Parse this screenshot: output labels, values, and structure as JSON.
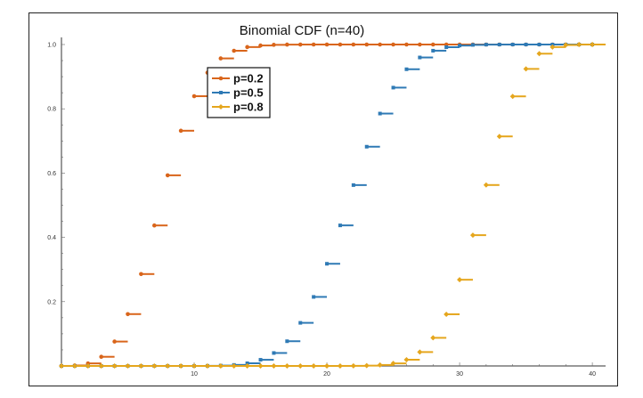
{
  "chart_data": {
    "type": "line",
    "step": true,
    "title": "Binomial CDF (n=40)",
    "xlabel": "",
    "ylabel": "",
    "xlim": [
      0,
      41
    ],
    "ylim": [
      0,
      1.0
    ],
    "x_ticks": [
      10,
      20,
      30,
      40
    ],
    "y_ticks": [
      0.2,
      0.4,
      0.6,
      0.8,
      1.0
    ],
    "x_tick_labels": [
      "10",
      "20",
      "30",
      "40"
    ],
    "y_tick_labels": [
      "0.2",
      "0.4",
      "0.6",
      "0.8",
      "1.0"
    ],
    "grid": false,
    "legend_position": "inside-upper-left",
    "x": [
      0,
      1,
      2,
      3,
      4,
      5,
      6,
      7,
      8,
      9,
      10,
      11,
      12,
      13,
      14,
      15,
      16,
      17,
      18,
      19,
      20,
      21,
      22,
      23,
      24,
      25,
      26,
      27,
      28,
      29,
      30,
      31,
      32,
      33,
      34,
      35,
      36,
      37,
      38,
      39,
      40
    ],
    "series": [
      {
        "name": "p=0.2",
        "color": "#d9651b",
        "marker": "circle",
        "values": [
          0.0001,
          0.0015,
          0.0079,
          0.0285,
          0.0759,
          0.1613,
          0.2859,
          0.4371,
          0.5931,
          0.7318,
          0.8392,
          0.9125,
          0.9568,
          0.9806,
          0.9921,
          0.997,
          0.999,
          0.9997,
          0.9999,
          1,
          1,
          1,
          1,
          1,
          1,
          1,
          1,
          1,
          1,
          1,
          1,
          1,
          1,
          1,
          1,
          1,
          1,
          1,
          1,
          1,
          1
        ]
      },
      {
        "name": "p=0.5",
        "color": "#2f7ab5",
        "marker": "square",
        "values": [
          0,
          0,
          0,
          0,
          0,
          0,
          0,
          0,
          0,
          0,
          0,
          0.0003,
          0.0011,
          0.0032,
          0.0083,
          0.0192,
          0.0403,
          0.0769,
          0.1341,
          0.2148,
          0.3179,
          0.4373,
          0.5627,
          0.6821,
          0.7852,
          0.8659,
          0.9231,
          0.9597,
          0.9808,
          0.9917,
          0.9968,
          0.9989,
          0.9997,
          0.9999,
          1,
          1,
          1,
          1,
          1,
          1,
          1
        ]
      },
      {
        "name": "p=0.8",
        "color": "#e5a61d",
        "marker": "diamond",
        "values": [
          0,
          0,
          0,
          0,
          0,
          0,
          0,
          0,
          0,
          0,
          0,
          0,
          0,
          0,
          0,
          0,
          0,
          0,
          0,
          0,
          0,
          0.0001,
          0.0003,
          0.001,
          0.003,
          0.0079,
          0.0194,
          0.0432,
          0.0875,
          0.1608,
          0.2682,
          0.4069,
          0.5629,
          0.7141,
          0.8387,
          0.9241,
          0.9715,
          0.9921,
          0.9985,
          0.9999,
          1
        ]
      }
    ]
  }
}
